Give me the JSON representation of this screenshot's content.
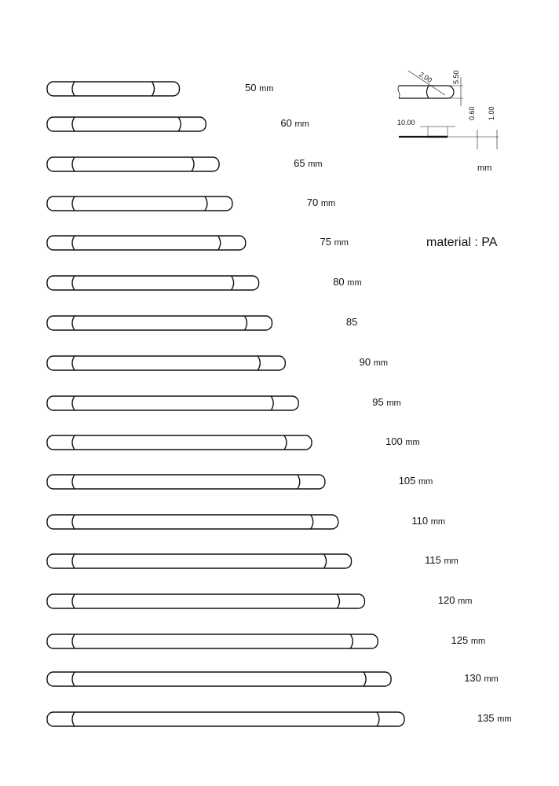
{
  "strips": [
    {
      "length_mm": 50,
      "label": "50",
      "unit": "mm"
    },
    {
      "length_mm": 60,
      "label": "60",
      "unit": "mm"
    },
    {
      "length_mm": 65,
      "label": "65",
      "unit": "mm"
    },
    {
      "length_mm": 70,
      "label": "70",
      "unit": "mm"
    },
    {
      "length_mm": 75,
      "label": "75",
      "unit": "mm"
    },
    {
      "length_mm": 80,
      "label": "80",
      "unit": "mm"
    },
    {
      "length_mm": 85,
      "label": "85",
      "unit": ""
    },
    {
      "length_mm": 90,
      "label": "90",
      "unit": "mm"
    },
    {
      "length_mm": 95,
      "label": "95",
      "unit": "mm"
    },
    {
      "length_mm": 100,
      "label": "100",
      "unit": "mm"
    },
    {
      "length_mm": 105,
      "label": "105",
      "unit": "mm"
    },
    {
      "length_mm": 110,
      "label": "110",
      "unit": "mm"
    },
    {
      "length_mm": 115,
      "label": "115",
      "unit": "mm"
    },
    {
      "length_mm": 120,
      "label": "120",
      "unit": "mm"
    },
    {
      "length_mm": 125,
      "label": "125",
      "unit": "mm"
    },
    {
      "length_mm": 130,
      "label": "130",
      "unit": "mm"
    },
    {
      "length_mm": 135,
      "label": "135",
      "unit": "mm"
    }
  ],
  "detail": {
    "radius": "2.00",
    "width": "5.50",
    "end_length": "10.00",
    "thin_thickness": "0.60",
    "thickness": "1.00",
    "unit": "mm"
  },
  "material": "material : PA"
}
